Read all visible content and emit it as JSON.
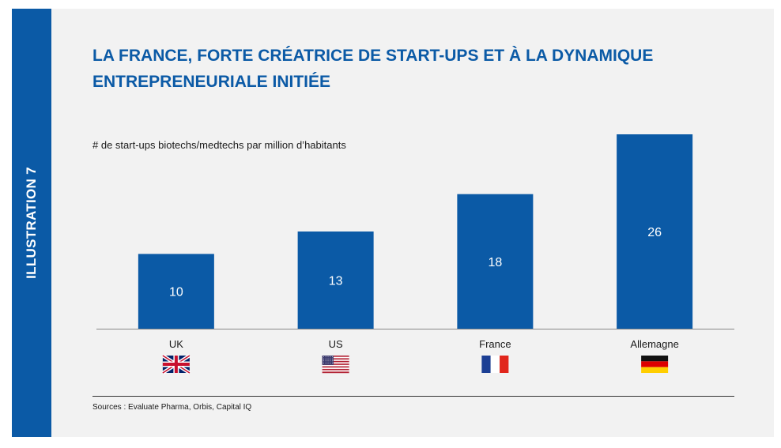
{
  "side_label": "ILLUSTRATION 7",
  "source": "Sources : Evaluate Pharma, Orbis, Capital IQ",
  "colors": {
    "accent": "#0b5aa6",
    "bar": "#0b5aa6",
    "background": "#f2f2f2"
  },
  "chart_data": {
    "type": "bar",
    "title": "LA FRANCE, FORTE CRÉATRICE DE START-UPS ET À LA DYNAMIQUE ENTREPRENEURIALE INITIÉE",
    "subtitle": "# de start-ups biotechs/medtechs par million d’habitants",
    "categories": [
      "UK",
      "US",
      "France",
      "Allemagne"
    ],
    "values": [
      10,
      13,
      18,
      26
    ],
    "flags": [
      "uk-flag-icon",
      "us-flag-icon",
      "france-flag-icon",
      "germany-flag-icon"
    ],
    "ylim": [
      0,
      26
    ],
    "grid": false
  }
}
